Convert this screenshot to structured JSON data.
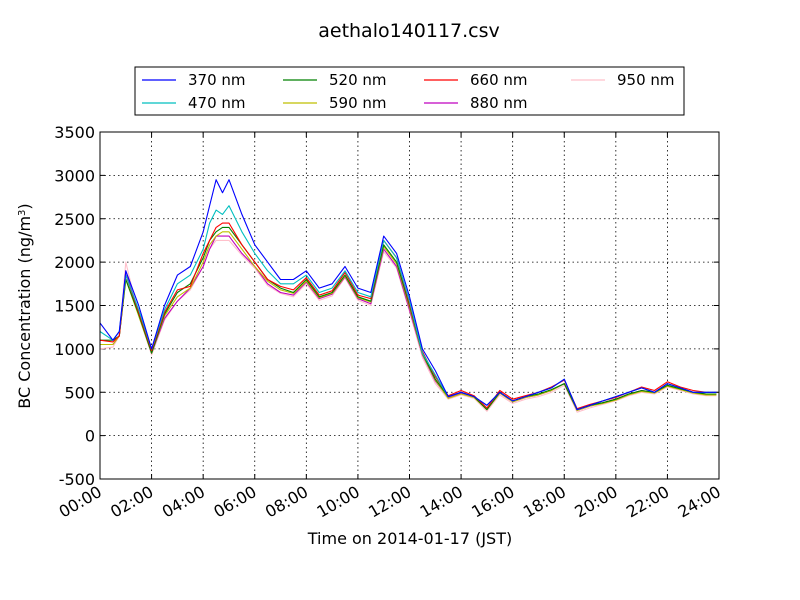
{
  "chart_data": {
    "type": "line",
    "title": "aethalo140117.csv",
    "xlabel": "Time on 2014-01-17 (JST)",
    "ylabel": "BC Concentration (ng/m",
    "ylabel_sup": "3",
    "ylabel_end": ")",
    "xlim": [
      0,
      24
    ],
    "ylim": [
      -500,
      3500
    ],
    "x_ticks": [
      0,
      2,
      4,
      6,
      8,
      10,
      12,
      14,
      16,
      18,
      20,
      22,
      24
    ],
    "x_tick_labels": [
      "00:00",
      "02:00",
      "04:00",
      "06:00",
      "08:00",
      "10:00",
      "12:00",
      "14:00",
      "16:00",
      "18:00",
      "20:00",
      "22:00",
      "24:00"
    ],
    "y_ticks": [
      -500,
      0,
      500,
      1000,
      1500,
      2000,
      2500,
      3000,
      3500
    ],
    "y_tick_labels": [
      "-500",
      "0",
      "500",
      "1000",
      "1500",
      "2000",
      "2500",
      "3000",
      "3500"
    ],
    "grid": true,
    "legend_position": "top",
    "x": [
      0,
      0.5,
      0.75,
      1,
      1.5,
      2,
      2.5,
      3,
      3.5,
      4,
      4.25,
      4.5,
      4.75,
      5,
      5.5,
      6,
      6.5,
      7,
      7.5,
      8,
      8.5,
      9,
      9.5,
      10,
      10.5,
      11,
      11.5,
      12,
      12.5,
      13,
      13.5,
      14,
      14.5,
      15,
      15.5,
      16,
      16.5,
      17,
      17.5,
      18,
      18.5,
      19,
      19.5,
      20,
      20.5,
      21,
      21.5,
      22,
      22.5,
      23,
      23.5,
      23.9
    ],
    "series": [
      {
        "name": "370 nm",
        "color": "#0000ff",
        "values": [
          1300,
          1100,
          1200,
          1900,
          1500,
          1000,
          1500,
          1850,
          1950,
          2350,
          2650,
          2950,
          2800,
          2950,
          2550,
          2200,
          2000,
          1800,
          1800,
          1900,
          1700,
          1750,
          1950,
          1700,
          1650,
          2300,
          2100,
          1600,
          1000,
          750,
          450,
          500,
          450,
          350,
          500,
          400,
          450,
          500,
          550,
          650,
          300,
          350,
          400,
          450,
          500,
          550,
          500,
          600,
          550,
          500,
          500,
          500
        ]
      },
      {
        "name": "470 nm",
        "color": "#00bfbf",
        "values": [
          1200,
          1100,
          1200,
          1850,
          1450,
          1000,
          1450,
          1750,
          1850,
          2150,
          2450,
          2600,
          2550,
          2650,
          2350,
          2100,
          1900,
          1750,
          1750,
          1850,
          1650,
          1700,
          1900,
          1650,
          1600,
          2250,
          2050,
          1550,
          950,
          700,
          450,
          500,
          450,
          350,
          500,
          400,
          450,
          500,
          550,
          650,
          300,
          350,
          400,
          450,
          500,
          550,
          500,
          600,
          550,
          500,
          500,
          500
        ]
      },
      {
        "name": "520 nm",
        "color": "#008000",
        "values": [
          1100,
          1100,
          1150,
          1800,
          1400,
          950,
          1400,
          1650,
          1750,
          2050,
          2250,
          2350,
          2400,
          2400,
          2200,
          2000,
          1800,
          1700,
          1650,
          1800,
          1600,
          1650,
          1850,
          1600,
          1550,
          2200,
          2000,
          1500,
          950,
          650,
          450,
          500,
          450,
          300,
          500,
          400,
          450,
          480,
          530,
          600,
          300,
          350,
          380,
          420,
          480,
          520,
          500,
          580,
          540,
          500,
          480,
          480
        ]
      },
      {
        "name": "590 nm",
        "color": "#bfbf00",
        "values": [
          1050,
          1050,
          1150,
          1800,
          1380,
          950,
          1380,
          1600,
          1700,
          2000,
          2200,
          2300,
          2350,
          2350,
          2150,
          1950,
          1780,
          1680,
          1640,
          1780,
          1590,
          1640,
          1840,
          1590,
          1540,
          2180,
          1980,
          1480,
          940,
          640,
          430,
          480,
          440,
          300,
          490,
          390,
          440,
          470,
          520,
          600,
          290,
          340,
          370,
          410,
          470,
          510,
          490,
          570,
          530,
          490,
          470,
          470
        ]
      },
      {
        "name": "660 nm",
        "color": "#ff0000",
        "values": [
          1100,
          1080,
          1150,
          1850,
          1420,
          980,
          1420,
          1680,
          1720,
          2100,
          2250,
          2400,
          2450,
          2450,
          2200,
          2000,
          1800,
          1720,
          1680,
          1820,
          1620,
          1670,
          1880,
          1620,
          1580,
          2250,
          2050,
          1520,
          970,
          680,
          460,
          520,
          460,
          320,
          520,
          420,
          460,
          500,
          560,
          640,
          310,
          360,
          400,
          440,
          500,
          560,
          520,
          620,
          560,
          520,
          500,
          500
        ]
      },
      {
        "name": "880 nm",
        "color": "#bf00bf",
        "values": [
          1050,
          1050,
          1150,
          1900,
          1400,
          950,
          1350,
          1550,
          1700,
          1950,
          2150,
          2300,
          2300,
          2300,
          2100,
          1950,
          1750,
          1650,
          1620,
          1770,
          1580,
          1630,
          1830,
          1580,
          1520,
          2150,
          1950,
          1450,
          930,
          630,
          440,
          490,
          450,
          300,
          490,
          390,
          440,
          470,
          520,
          600,
          290,
          340,
          380,
          420,
          480,
          520,
          500,
          580,
          540,
          500,
          480,
          480
        ]
      },
      {
        "name": "950 nm",
        "color": "#ffc0cb",
        "values": [
          1000,
          1020,
          1150,
          2000,
          1380,
          930,
          1330,
          1550,
          1680,
          1950,
          2150,
          2250,
          2250,
          2250,
          2080,
          1930,
          1730,
          1640,
          1600,
          1750,
          1560,
          1610,
          1820,
          1560,
          1500,
          2120,
          1930,
          1430,
          900,
          600,
          420,
          470,
          430,
          280,
          470,
          370,
          420,
          450,
          500,
          580,
          270,
          320,
          360,
          400,
          460,
          500,
          480,
          560,
          520,
          480,
          460,
          460
        ]
      }
    ]
  }
}
